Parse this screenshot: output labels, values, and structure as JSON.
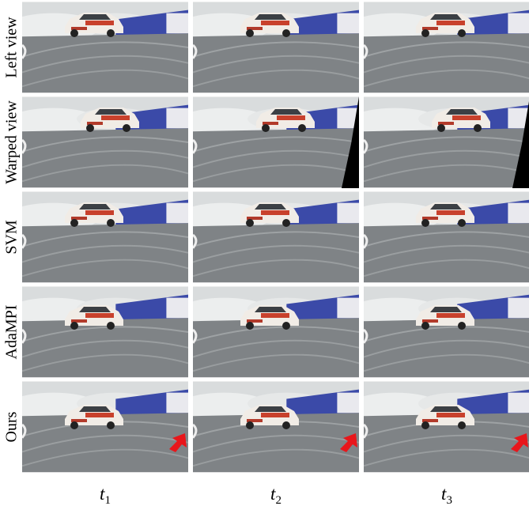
{
  "figure": {
    "rows": [
      "Left view",
      "Warped view",
      "SVM",
      "AdaMPI",
      "Ours"
    ],
    "columns": [
      {
        "symbol": "t",
        "index": "1"
      },
      {
        "symbol": "t",
        "index": "2"
      },
      {
        "symbol": "t",
        "index": "3"
      }
    ]
  }
}
